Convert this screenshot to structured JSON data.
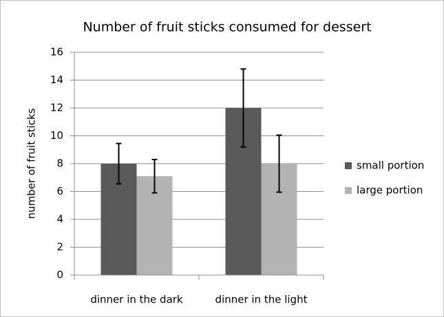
{
  "chart_data": {
    "type": "bar",
    "title": "Number of fruit sticks consumed for dessert",
    "y_label": "number of fruit sticks",
    "categories": [
      "dinner in the dark",
      "dinner in the light"
    ],
    "series": [
      {
        "name": "small portion",
        "color": "#595959",
        "values": [
          8,
          12
        ],
        "errors": [
          1.45,
          2.8
        ]
      },
      {
        "name": "large portion",
        "color": "#b3b3b3",
        "values": [
          7.1,
          8
        ],
        "errors": [
          1.2,
          2.05
        ]
      }
    ],
    "ylim": [
      0,
      16
    ],
    "yticks": [
      0,
      2,
      4,
      6,
      8,
      10,
      12,
      14,
      16
    ],
    "grid": true,
    "legend": "right"
  }
}
